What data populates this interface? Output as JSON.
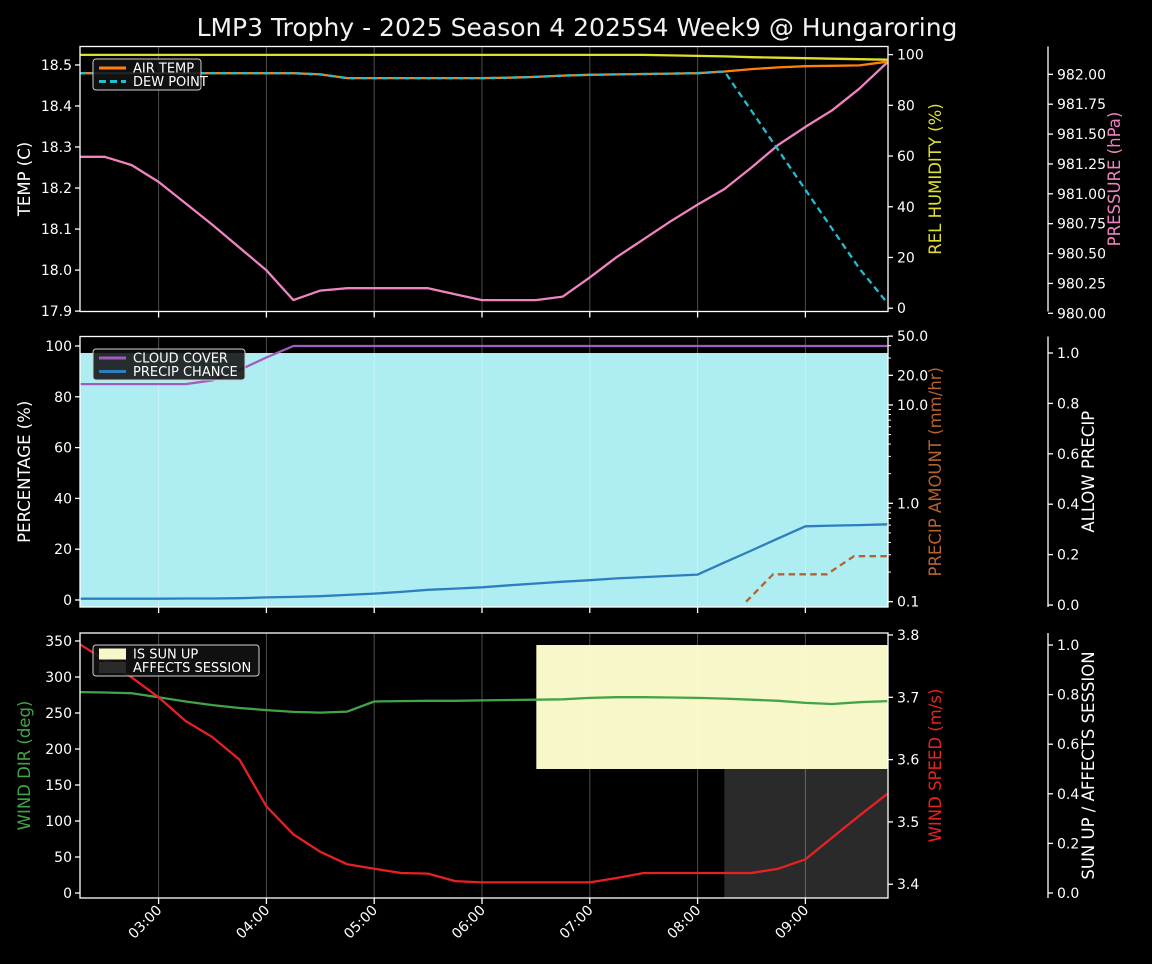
{
  "title": "LMP3 Trophy - 2025 Season 4 2025S4 Week9 @ Hungaroring",
  "colors": {
    "background": "#000000",
    "text": "#ffffff",
    "spine": "#ffffff",
    "grid": "rgba(255,255,255,0.30)",
    "air_temp": "#ff7f0e",
    "dew_point": "#20becf",
    "rel_humidity": "#e0e02a",
    "pressure": "#f083c0",
    "cloud_cover": "#a35bbf",
    "precip_chance": "#2e7ebf",
    "precip_amount": "#b5632e",
    "allow_precip_fill": "#aeeef2",
    "wind_dir": "#43a447",
    "wind_speed": "#e52222",
    "sun_up_fill": "#f8f7c9",
    "affects_session_fill": "#2a2a2a",
    "legend_bg": "rgba(18,18,18,0.88)",
    "legend_border": "#cfcfcf"
  },
  "time_axis": {
    "range": [
      2.2708,
      9.7663
    ],
    "tick_hours": [
      3,
      4,
      5,
      6,
      7,
      8,
      9
    ],
    "tick_labels": [
      "03:00",
      "04:00",
      "05:00",
      "06:00",
      "07:00",
      "08:00",
      "09:00"
    ]
  },
  "chart_data": [
    {
      "id": "temperature-humidity-pressure",
      "type": "line",
      "x_hours": [
        2.27,
        2.5,
        2.75,
        3,
        3.25,
        3.5,
        3.75,
        4,
        4.25,
        4.5,
        4.75,
        5,
        5.25,
        5.5,
        5.75,
        6,
        6.25,
        6.5,
        6.75,
        7,
        7.25,
        7.5,
        7.75,
        8,
        8.25,
        8.5,
        8.75,
        9,
        9.25,
        9.5,
        9.76
      ],
      "axes": {
        "left": {
          "label": "TEMP (C)",
          "label_color": "#ffffff",
          "range": [
            17.899,
            18.545
          ],
          "ticks": [
            17.9,
            18.0,
            18.1,
            18.2,
            18.3,
            18.4,
            18.5
          ],
          "decimals": 1
        },
        "right1": {
          "label": "REL HUMIDITY (%)",
          "label_color": "#e0e02a",
          "range": [
            -1.3,
            103.2
          ],
          "ticks": [
            0,
            20,
            40,
            60,
            80,
            100
          ],
          "decimals": 0
        },
        "right2": {
          "label": "PRESSURE (hPa)",
          "label_color": "#f083c0",
          "range": [
            980.015,
            982.233
          ],
          "ticks": [
            980.0,
            980.25,
            980.5,
            980.75,
            981.0,
            981.25,
            981.5,
            981.75,
            982.0
          ],
          "decimals": 2
        }
      },
      "series": [
        {
          "name": "REL HUMIDITY",
          "axis": "right1",
          "color": "#e0e02a",
          "style": "solid",
          "values": [
            99.9,
            99.9,
            99.9,
            99.9,
            99.9,
            99.9,
            99.9,
            99.9,
            99.9,
            99.9,
            99.9,
            99.9,
            99.9,
            99.9,
            99.9,
            99.9,
            99.9,
            99.9,
            99.9,
            99.9,
            99.9,
            99.9,
            99.7,
            99.5,
            99.3,
            99.0,
            98.8,
            98.6,
            98.4,
            98.2,
            98.0
          ]
        },
        {
          "name": "PRESSURE",
          "axis": "right2",
          "color": "#f083c0",
          "style": "solid",
          "values": [
            981.31,
            981.31,
            981.24,
            981.1,
            980.92,
            980.74,
            980.55,
            980.36,
            980.11,
            980.19,
            980.21,
            980.21,
            980.21,
            980.21,
            980.16,
            980.11,
            980.11,
            980.11,
            980.14,
            980.3,
            980.47,
            980.62,
            980.77,
            980.91,
            981.04,
            981.22,
            981.41,
            981.56,
            981.7,
            981.88,
            982.1
          ]
        },
        {
          "name": "AIR TEMP",
          "axis": "left",
          "color": "#ff7f0e",
          "style": "solid",
          "values": [
            18.48,
            18.48,
            18.48,
            18.48,
            18.48,
            18.48,
            18.48,
            18.48,
            18.48,
            18.477,
            18.468,
            18.468,
            18.468,
            18.468,
            18.468,
            18.468,
            18.469,
            18.471,
            18.474,
            18.476,
            18.477,
            18.478,
            18.479,
            18.48,
            18.484,
            18.49,
            18.494,
            18.497,
            18.498,
            18.499,
            18.508
          ]
        },
        {
          "name": "DEW POINT",
          "axis": "left",
          "color": "#20becf",
          "style": "dashed",
          "values": [
            18.48,
            18.48,
            18.48,
            18.48,
            18.48,
            18.48,
            18.48,
            18.48,
            18.48,
            18.477,
            18.468,
            18.468,
            18.468,
            18.468,
            18.468,
            18.468,
            18.469,
            18.471,
            18.474,
            18.476,
            18.477,
            18.478,
            18.479,
            18.48,
            18.484,
            18.388,
            18.292,
            18.196,
            18.1,
            18.004,
            17.92
          ]
        }
      ],
      "bands": [],
      "legend": [
        {
          "label": "AIR TEMP",
          "color": "#ff7f0e",
          "style": "line"
        },
        {
          "label": "DEW POINT",
          "color": "#20becf",
          "style": "dash"
        }
      ]
    },
    {
      "id": "cloud-precip",
      "type": "line",
      "x_hours": [
        2.27,
        2.5,
        2.75,
        3,
        3.25,
        3.5,
        3.75,
        4,
        4.25,
        4.5,
        4.75,
        5,
        5.25,
        5.5,
        5.75,
        6,
        6.25,
        6.5,
        6.75,
        7,
        7.25,
        7.5,
        7.75,
        8,
        8.25,
        8.5,
        8.75,
        9,
        9.25,
        9.5,
        9.76
      ],
      "axes": {
        "left": {
          "label": "PERCENTAGE (%)",
          "label_color": "#ffffff",
          "range": [
            -2.76,
            103.74
          ],
          "ticks": [
            0,
            20,
            40,
            60,
            80,
            100
          ],
          "decimals": 0
        },
        "right1": {
          "label": "PRECIP AMOUNT (mm/hr)",
          "label_color": "#b5632e",
          "scale": "log",
          "range": [
            0.0883,
            49.6
          ],
          "ticks": [
            50,
            20,
            10,
            1,
            0.1
          ],
          "tick_labels": [
            "50.0",
            "20.0",
            "10.0",
            "1.0",
            "0.1"
          ],
          "minor_ticks": [
            0.2,
            0.3,
            0.4,
            0.5,
            0.6,
            0.7,
            0.8,
            0.9,
            2,
            3,
            4,
            5,
            6,
            7,
            8,
            9,
            30,
            40
          ]
        },
        "right2": {
          "label": "ALLOW PRECIP",
          "label_color": "#ffffff",
          "range": [
            -0.0079,
            1.0655
          ],
          "ticks": [
            0.0,
            0.2,
            0.4,
            0.6,
            0.8,
            1.0
          ],
          "decimals": 1
        }
      },
      "series": [
        {
          "name": "CLOUD COVER",
          "axis": "left",
          "color": "#a35bbf",
          "style": "solid",
          "values": [
            85,
            85,
            85,
            85,
            85,
            86.5,
            90.5,
            95.5,
            100,
            100,
            100,
            100,
            100,
            100,
            100,
            100,
            100,
            100,
            100,
            100,
            100,
            100,
            100,
            100,
            100,
            100,
            100,
            100,
            100,
            100,
            100
          ]
        },
        {
          "name": "PRECIP CHANCE",
          "axis": "left",
          "color": "#2e7ebf",
          "style": "solid",
          "values": [
            0.5,
            0.5,
            0.5,
            0.5,
            0.6,
            0.6,
            0.7,
            1,
            1.2,
            1.5,
            2,
            2.5,
            3.2,
            4,
            4.5,
            5,
            5.8,
            6.5,
            7.2,
            7.8,
            8.5,
            9,
            9.5,
            10,
            14.8,
            19.5,
            24.3,
            29,
            29.3,
            29.5,
            29.8
          ]
        },
        {
          "name": "PRECIP AMOUNT",
          "axis": "right1",
          "color": "#b5632e",
          "style": "dashed",
          "x": [
            8.45,
            8.7,
            9.2,
            9.45,
            9.76
          ],
          "values": [
            0.1,
            0.19,
            0.19,
            0.29,
            0.29
          ]
        }
      ],
      "bands": [
        {
          "name": "allow-precip-fill",
          "axis": "right2",
          "x_from": 2.2708,
          "x_to": 9.7663,
          "v_from": -0.0079,
          "v_to": 1.0,
          "color": "#aeeef2",
          "meaning": "ALLOW PRECIP = 1.0 for entire window"
        }
      ],
      "legend": [
        {
          "label": "CLOUD COVER",
          "color": "#a35bbf",
          "style": "line"
        },
        {
          "label": "PRECIP CHANCE",
          "color": "#2e7ebf",
          "style": "line"
        }
      ]
    },
    {
      "id": "wind-sun-session",
      "type": "line",
      "x_hours": [
        2.27,
        2.5,
        2.75,
        3,
        3.25,
        3.5,
        3.75,
        4,
        4.25,
        4.5,
        4.75,
        5,
        5.25,
        5.5,
        5.75,
        6,
        6.25,
        6.5,
        6.75,
        7,
        7.25,
        7.5,
        7.75,
        8,
        8.25,
        8.5,
        8.75,
        9,
        9.25,
        9.5,
        9.76
      ],
      "axes": {
        "left": {
          "label": "WIND DIR (deg)",
          "label_color": "#43a447",
          "range": [
            -6.94,
            361.1
          ],
          "ticks": [
            0,
            50,
            100,
            150,
            200,
            250,
            300,
            350
          ],
          "decimals": 0
        },
        "right1": {
          "label": "WIND SPEED (m/s)",
          "label_color": "#e52222",
          "range": [
            3.3779,
            3.8032
          ],
          "ticks": [
            3.4,
            3.5,
            3.6,
            3.7,
            3.8
          ],
          "decimals": 1
        },
        "right2": {
          "label": "SUN UP / AFFECTS SESSION",
          "label_color": "#ffffff",
          "range": [
            -0.0202,
            1.0484
          ],
          "ticks": [
            0.0,
            0.2,
            0.4,
            0.6,
            0.8,
            1.0
          ],
          "decimals": 1
        }
      },
      "series": [
        {
          "name": "WIND DIR",
          "axis": "left",
          "color": "#43a447",
          "style": "solid",
          "values": [
            279,
            278.5,
            277.5,
            272,
            266,
            261,
            257,
            254,
            251.5,
            250.5,
            252,
            266,
            266.5,
            267,
            267,
            267.5,
            268,
            268.5,
            269,
            271,
            272,
            272,
            271.5,
            271,
            270,
            268.5,
            267,
            264,
            262.5,
            265,
            266.5
          ]
        },
        {
          "name": "WIND SPEED",
          "axis": "right1",
          "color": "#e52222",
          "style": "solid",
          "values": [
            3.785,
            3.76,
            3.732,
            3.7,
            3.662,
            3.636,
            3.6,
            3.525,
            3.48,
            3.452,
            3.432,
            3.425,
            3.418,
            3.417,
            3.405,
            3.403,
            3.403,
            3.403,
            3.403,
            3.403,
            3.41,
            3.418,
            3.418,
            3.418,
            3.418,
            3.418,
            3.425,
            3.44,
            3.475,
            3.51,
            3.545
          ]
        }
      ],
      "bands": [
        {
          "name": "is-sun-up-band",
          "axis": "right2",
          "x_from": 6.504,
          "x_to": 9.7663,
          "v_from": 0.5,
          "v_to": 1.0,
          "color": "#f8f7c9",
          "meaning": "IS SUN UP = true from ~06:30"
        },
        {
          "name": "affects-session-band",
          "axis": "right2",
          "x_from": 8.248,
          "x_to": 9.7663,
          "v_from": -0.0202,
          "v_to": 0.5,
          "color": "#2a2a2a",
          "meaning": "AFFECTS SESSION = true from ~08:15"
        }
      ],
      "legend": [
        {
          "label": "IS SUN UP",
          "color": "#f8f7c9",
          "style": "patch"
        },
        {
          "label": "AFFECTS SESSION",
          "color": "#2a2a2a",
          "style": "patch"
        }
      ]
    }
  ]
}
